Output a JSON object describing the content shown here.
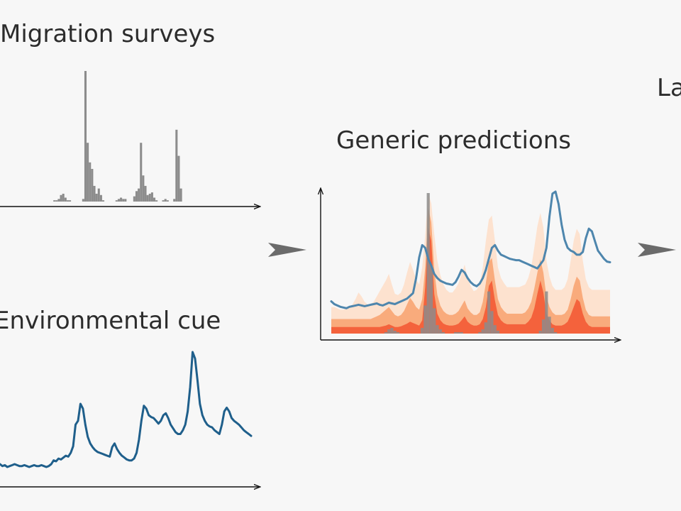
{
  "labels": {
    "migration": "Migration surveys",
    "environment": "Environmental cue",
    "generic": "Generic predictions",
    "cropped": "La"
  },
  "colors": {
    "survey_bars": "#8c8c8c",
    "cue_line": "#1f5f8b",
    "prediction_line": "#4e86ad",
    "band_light": "#fde2cf",
    "band_mid": "#f9ab7c",
    "band_dark": "#f4623c",
    "axis": "#111111",
    "arrow": "#6b6b6b",
    "background": "#f7f7f7"
  },
  "icons": {
    "flow_arrows": "arrow-right-icon"
  },
  "panels": {
    "migration_surveys": {
      "series": [
        0,
        0,
        0,
        0,
        0,
        0,
        0,
        0,
        0,
        0,
        0,
        0,
        0,
        0,
        0,
        0,
        0,
        0,
        0,
        0,
        0,
        0,
        0,
        0,
        1,
        1,
        2,
        5,
        6,
        3,
        1,
        1,
        0,
        0,
        0,
        0,
        0,
        2,
        100,
        45,
        30,
        25,
        12,
        6,
        10,
        5,
        1,
        0,
        0,
        0,
        0,
        0,
        1,
        2,
        3,
        2,
        2,
        0,
        0,
        0,
        4,
        8,
        10,
        45,
        20,
        12,
        5,
        6,
        7,
        3,
        1,
        0,
        0,
        1,
        2,
        1,
        0,
        0,
        2,
        55,
        35,
        10,
        0,
        0,
        0,
        0,
        0,
        0,
        0,
        0,
        0,
        0,
        0,
        0,
        0,
        0,
        0,
        0,
        0,
        0,
        0,
        0,
        0,
        0,
        0,
        0,
        0,
        0,
        0,
        0,
        0,
        0,
        0,
        0,
        0
      ]
    },
    "environmental_cue": {
      "series": [
        6,
        4,
        5,
        3,
        4,
        5,
        6,
        5,
        4,
        4,
        5,
        4,
        3,
        4,
        5,
        4,
        4,
        5,
        4,
        3,
        4,
        6,
        10,
        9,
        12,
        11,
        13,
        15,
        14,
        18,
        25,
        48,
        52,
        70,
        65,
        48,
        35,
        28,
        24,
        21,
        19,
        18,
        17,
        16,
        15,
        14,
        24,
        28,
        22,
        18,
        15,
        13,
        11,
        10,
        10,
        12,
        18,
        32,
        52,
        68,
        65,
        58,
        56,
        55,
        52,
        49,
        52,
        58,
        60,
        55,
        48,
        44,
        40,
        38,
        38,
        42,
        48,
        62,
        88,
        125,
        118,
        95,
        70,
        58,
        52,
        48,
        46,
        45,
        42,
        40,
        38,
        48,
        62,
        66,
        62,
        55,
        52,
        50,
        48,
        45,
        42,
        40,
        38,
        36
      ]
    },
    "generic_predictions": {
      "line": [
        18,
        14,
        12,
        10,
        9,
        8,
        10,
        11,
        12,
        13,
        12,
        11,
        12,
        13,
        14,
        15,
        13,
        12,
        14,
        16,
        15,
        14,
        16,
        18,
        20,
        22,
        26,
        30,
        52,
        82,
        100,
        96,
        80,
        70,
        58,
        52,
        48,
        46,
        44,
        43,
        42,
        46,
        54,
        64,
        60,
        52,
        46,
        42,
        40,
        44,
        52,
        64,
        80,
        96,
        100,
        92,
        86,
        84,
        82,
        80,
        79,
        78,
        78,
        76,
        74,
        72,
        70,
        68,
        66,
        72,
        78,
        96,
        142,
        175,
        178,
        160,
        130,
        108,
        96,
        92,
        90,
        86,
        86,
        90,
        110,
        124,
        120,
        106,
        92,
        86,
        80,
        76,
        75
      ],
      "band_dark": [
        10,
        10,
        10,
        10,
        10,
        10,
        10,
        10,
        10,
        10,
        10,
        10,
        10,
        10,
        10,
        10,
        10,
        11,
        12,
        14,
        12,
        10,
        10,
        11,
        13,
        15,
        18,
        16,
        14,
        12,
        20,
        70,
        160,
        140,
        60,
        30,
        20,
        15,
        13,
        12,
        12,
        13,
        15,
        20,
        26,
        18,
        14,
        12,
        12,
        14,
        22,
        40,
        72,
        80,
        50,
        28,
        20,
        16,
        14,
        14,
        14,
        14,
        14,
        14,
        14,
        18,
        24,
        38,
        60,
        80,
        62,
        30,
        20,
        14,
        12,
        12,
        12,
        14,
        18,
        28,
        40,
        52,
        48,
        30,
        18,
        12,
        10,
        10,
        10,
        10,
        10,
        10,
        10
      ],
      "band_mid": [
        22,
        22,
        22,
        22,
        22,
        22,
        22,
        22,
        22,
        22,
        22,
        22,
        22,
        22,
        24,
        26,
        28,
        32,
        36,
        40,
        34,
        28,
        26,
        28,
        34,
        44,
        54,
        48,
        40,
        36,
        52,
        100,
        190,
        168,
        96,
        58,
        42,
        34,
        30,
        28,
        28,
        30,
        34,
        42,
        50,
        38,
        32,
        28,
        28,
        32,
        48,
        76,
        108,
        114,
        80,
        52,
        40,
        34,
        30,
        30,
        30,
        30,
        30,
        30,
        32,
        38,
        48,
        68,
        92,
        112,
        92,
        56,
        40,
        32,
        28,
        28,
        28,
        30,
        36,
        52,
        72,
        86,
        80,
        54,
        36,
        28,
        26,
        26,
        26,
        26,
        26,
        26,
        26
      ],
      "band_light": [
        40,
        40,
        38,
        36,
        36,
        38,
        40,
        44,
        52,
        62,
        56,
        48,
        44,
        44,
        48,
        56,
        64,
        72,
        80,
        90,
        74,
        60,
        58,
        62,
        74,
        92,
        108,
        96,
        82,
        74,
        100,
        148,
        212,
        196,
        150,
        110,
        88,
        74,
        66,
        62,
        62,
        68,
        76,
        90,
        104,
        84,
        72,
        64,
        66,
        74,
        100,
        140,
        172,
        178,
        140,
        100,
        84,
        76,
        70,
        70,
        70,
        70,
        70,
        72,
        74,
        84,
        100,
        130,
        162,
        182,
        160,
        110,
        86,
        72,
        66,
        66,
        66,
        70,
        82,
        110,
        140,
        158,
        150,
        110,
        82,
        70,
        66,
        66,
        66,
        66,
        66,
        66,
        66
      ],
      "survey_overlay": [
        0,
        0,
        0,
        0,
        0,
        0,
        0,
        0,
        0,
        0,
        0,
        0,
        0,
        0,
        0,
        0,
        0,
        0,
        1,
        3,
        4,
        2,
        1,
        0,
        0,
        0,
        0,
        0,
        0,
        0,
        4,
        20,
        100,
        48,
        18,
        6,
        3,
        1,
        0,
        0,
        0,
        1,
        1,
        1,
        0,
        0,
        0,
        0,
        0,
        1,
        3,
        8,
        30,
        16,
        6,
        2,
        0,
        0,
        0,
        0,
        0,
        0,
        0,
        0,
        0,
        0,
        0,
        0,
        0,
        2,
        10,
        30,
        12,
        4,
        1,
        0,
        0,
        0,
        0,
        0,
        0,
        0,
        0,
        0,
        0,
        0,
        0,
        0,
        0,
        0,
        0,
        0,
        0
      ]
    }
  }
}
